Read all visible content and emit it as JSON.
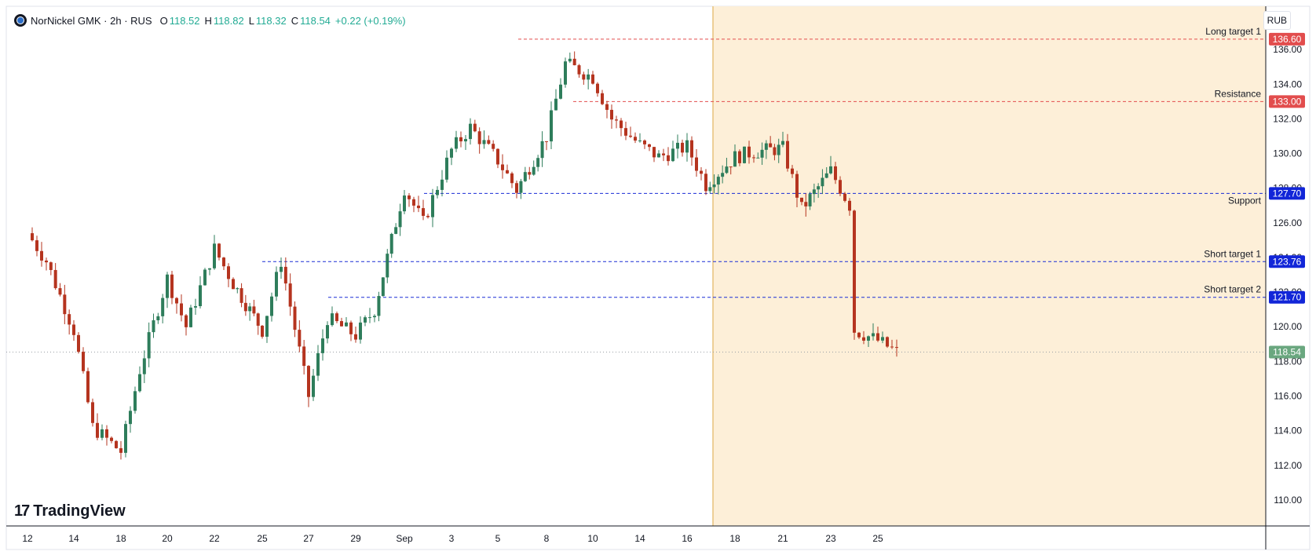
{
  "header": {
    "symbol_line": "NorNickel GMK · 2h · RUS",
    "ohlc": [
      {
        "label": "O",
        "value": "118.52"
      },
      {
        "label": "H",
        "value": "118.82"
      },
      {
        "label": "L",
        "value": "118.32"
      },
      {
        "label": "C",
        "value": "118.54"
      }
    ],
    "change": "+0.22 (+0.19%)",
    "logo_icon": "nornickel-logo-icon"
  },
  "currency_label": "RUB",
  "brand": "TradingView",
  "colors": {
    "up": "#22ab94",
    "down": "#f23645",
    "candle_up": "#2e7d5b",
    "candle_down": "#b5341f",
    "resistance": "#e24d4d",
    "support": "#1a2dd6",
    "highlight": "#fdefd8",
    "highlight_line": "#e8c27a",
    "last_price": "#6aa77f"
  },
  "chart_data": {
    "type": "candlestick",
    "ylim": [
      108.5,
      138.5
    ],
    "y_ticks": [
      "110.00",
      "112.00",
      "114.00",
      "116.00",
      "118.00",
      "120.00",
      "122.00",
      "124.00",
      "126.00",
      "128.00",
      "130.00",
      "132.00",
      "134.00",
      "136.00"
    ],
    "x_ticks": [
      "12",
      "14",
      "18",
      "20",
      "22",
      "25",
      "27",
      "29",
      "Sep",
      "3",
      "5",
      "8",
      "10",
      "14",
      "16",
      "18",
      "21",
      "23",
      "25"
    ],
    "levels": [
      {
        "label": "Long target 1",
        "price": "136.60",
        "value": 136.6,
        "kind": "resistance",
        "start_tick": "Sep"
      },
      {
        "label": "Resistance",
        "price": "133.00",
        "value": 133.0,
        "kind": "resistance",
        "start_tick": "10"
      },
      {
        "label": "Support",
        "price": "127.70",
        "value": 127.7,
        "kind": "support",
        "start_tick": "3"
      },
      {
        "label": "Short target 1",
        "price": "123.76",
        "value": 123.76,
        "kind": "support",
        "start_tick": "25"
      },
      {
        "label": "Short target 2",
        "price": "121.70",
        "value": 121.7,
        "kind": "support",
        "start_tick": "29"
      }
    ],
    "last_price": {
      "price": "118.54",
      "value": 118.54
    },
    "highlight_from_tick": "16",
    "price_path": [
      {
        "x": "12",
        "y": 125.4
      },
      {
        "x": "12",
        "y": 123.8
      },
      {
        "x": "14",
        "y": 119.8
      },
      {
        "x": "14",
        "y": 114.2
      },
      {
        "x": "18",
        "y": 112.8
      },
      {
        "x": "18",
        "y": 117.5
      },
      {
        "x": "20",
        "y": 122.8
      },
      {
        "x": "20",
        "y": 120.0
      },
      {
        "x": "22",
        "y": 124.5
      },
      {
        "x": "22",
        "y": 122.5
      },
      {
        "x": "25",
        "y": 119.8
      },
      {
        "x": "25",
        "y": 123.8
      },
      {
        "x": "27",
        "y": 116.0
      },
      {
        "x": "27",
        "y": 120.5
      },
      {
        "x": "29",
        "y": 119.5
      },
      {
        "x": "29",
        "y": 121.0
      },
      {
        "x": "Sep",
        "y": 128.0
      },
      {
        "x": "Sep",
        "y": 126.0
      },
      {
        "x": "3",
        "y": 130.2
      },
      {
        "x": "3",
        "y": 131.5
      },
      {
        "x": "5",
        "y": 129.6
      },
      {
        "x": "5",
        "y": 127.9
      },
      {
        "x": "8",
        "y": 131.0
      },
      {
        "x": "8",
        "y": 135.2
      },
      {
        "x": "10",
        "y": 134.4
      },
      {
        "x": "10",
        "y": 132.0
      },
      {
        "x": "14",
        "y": 130.5
      },
      {
        "x": "14",
        "y": 129.8
      },
      {
        "x": "16",
        "y": 130.4
      },
      {
        "x": "16",
        "y": 128.2
      },
      {
        "x": "18",
        "y": 129.8
      },
      {
        "x": "18",
        "y": 130.1
      },
      {
        "x": "21",
        "y": 130.3
      },
      {
        "x": "21",
        "y": 126.8
      },
      {
        "x": "23",
        "y": 129.0
      },
      {
        "x": "23",
        "y": 127.0
      },
      {
        "x": "23",
        "y": 119.8
      },
      {
        "x": "25",
        "y": 119.2
      },
      {
        "x": "25",
        "y": 118.54
      }
    ]
  }
}
